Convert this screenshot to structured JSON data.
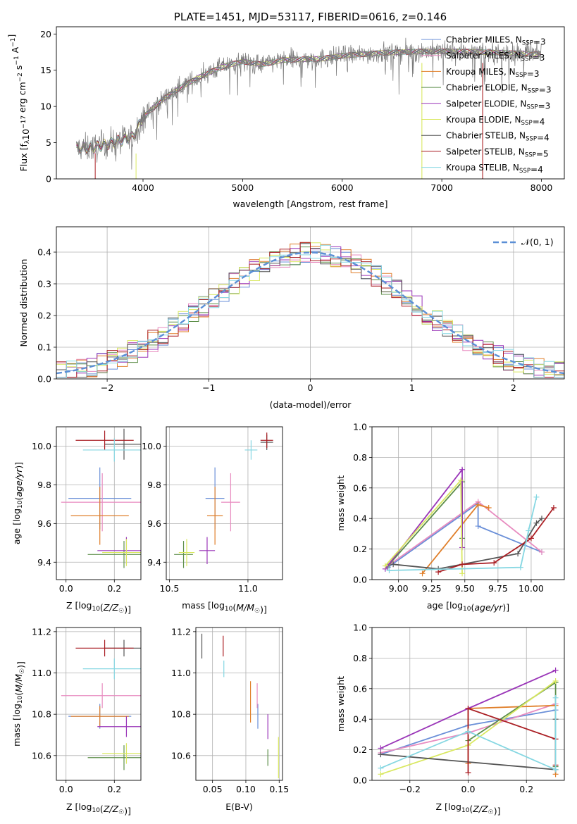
{
  "colors": {
    "Chabrier MILES": "#6a8fd8",
    "Salpeter MILES": "#e88cc0",
    "Kroupa MILES": "#e07f2a",
    "Chabrier ELODIE": "#5e8f4a",
    "Salpeter ELODIE": "#9a35b8",
    "Kroupa ELODIE": "#d9e860",
    "Chabrier STELIB": "#555555",
    "Salpeter STELIB": "#aa1f24",
    "Kroupa STELIB": "#86d7e2",
    "normal": "#5b8fd6"
  },
  "chart_data": [
    {
      "id": "spectrum",
      "type": "line",
      "title": "PLATE=1451, MJD=53117, FIBERID=0616, z=0.146",
      "xlabel": "wavelength [Angstrom, rest frame]",
      "ylabel": "Flux [f_λ10^-17 erg cm^-2 s^-1 A^-1]",
      "xlim": [
        3130,
        8230
      ],
      "ylim": [
        0,
        21
      ],
      "xticks": [
        4000,
        5000,
        6000,
        7000,
        8000
      ],
      "yticks": [
        0,
        5,
        10,
        15,
        20
      ],
      "legend_position": "upper-right",
      "legend": [
        {
          "model": "Chabrier MILES",
          "nssp": 3
        },
        {
          "model": "Salpeter MILES",
          "nssp": 3
        },
        {
          "model": "Kroupa MILES",
          "nssp": 3
        },
        {
          "model": "Chabrier ELODIE",
          "nssp": 3
        },
        {
          "model": "Salpeter ELODIE",
          "nssp": 3
        },
        {
          "model": "Kroupa ELODIE",
          "nssp": 4
        },
        {
          "model": "Chabrier STELIB",
          "nssp": 4
        },
        {
          "model": "Salpeter STELIB",
          "nssp": 5
        },
        {
          "model": "Kroupa STELIB",
          "nssp": 4
        }
      ],
      "continuum": {
        "wavelength": [
          3300,
          3500,
          3700,
          3900,
          4000,
          4200,
          4400,
          4600,
          4800,
          5000,
          5200,
          5400,
          5600,
          5800,
          6000,
          6200,
          6400,
          6600,
          6800,
          7000,
          7200,
          7400,
          7600,
          7800,
          8000
        ],
        "flux": [
          4.2,
          4.3,
          5.0,
          5.8,
          8.5,
          11.0,
          12.8,
          14.3,
          15.5,
          16.2,
          15.8,
          16.4,
          16.5,
          16.6,
          17.0,
          17.2,
          17.4,
          17.5,
          17.6,
          17.6,
          17.6,
          17.5,
          17.4,
          17.3,
          17.2
        ]
      },
      "stelib_cutoffs": [
        {
          "model": "Kroupa ELODIE",
          "wavelength": 6800
        },
        {
          "model": "Salpeter STELIB",
          "wavelength": 7410
        }
      ]
    },
    {
      "id": "residuals",
      "type": "histogram",
      "xlabel": "(data-model)/error",
      "ylabel": "Normed distribution",
      "xlim": [
        -2.5,
        2.5
      ],
      "ylim": [
        0,
        0.48
      ],
      "xticks": [
        -2,
        -1,
        0,
        1,
        2
      ],
      "yticks": [
        0.0,
        0.1,
        0.2,
        0.3,
        0.4
      ],
      "grid": true,
      "legend_position": "upper-right",
      "legend": [
        "𝒩(0, 1)"
      ],
      "bins": 50
    },
    {
      "id": "age_vs_Z",
      "type": "errorbar",
      "xlabel": "Z [log10(Z/Z☉)]",
      "ylabel": "age [log10(age/yr)]",
      "xlim": [
        -0.04,
        0.31
      ],
      "ylim": [
        9.31,
        10.1
      ],
      "xticks": [
        0.0,
        0.2
      ],
      "yticks": [
        9.4,
        9.6,
        9.8,
        10.0
      ],
      "grid": true,
      "points": [
        {
          "model": "Chabrier MILES",
          "x": 0.14,
          "xerr": 0.13,
          "y": 9.73,
          "yerr": 0.16
        },
        {
          "model": "Salpeter MILES",
          "x": 0.15,
          "xerr": 0.17,
          "y": 9.71,
          "yerr": 0.15
        },
        {
          "model": "Kroupa MILES",
          "x": 0.14,
          "xerr": 0.12,
          "y": 9.64,
          "yerr": 0.15
        },
        {
          "model": "Chabrier ELODIE",
          "x": 0.24,
          "xerr": 0.15,
          "y": 9.44,
          "yerr": 0.07
        },
        {
          "model": "Salpeter ELODIE",
          "x": 0.25,
          "xerr": 0.12,
          "y": 9.46,
          "yerr": 0.07
        },
        {
          "model": "Kroupa ELODIE",
          "x": 0.25,
          "xerr": 0.1,
          "y": 9.45,
          "yerr": 0.07
        },
        {
          "model": "Chabrier STELIB",
          "x": 0.24,
          "xerr": 0.08,
          "y": 10.01,
          "yerr": 0.08
        },
        {
          "model": "Salpeter STELIB",
          "x": 0.16,
          "xerr": 0.12,
          "y": 10.03,
          "yerr": 0.05
        },
        {
          "model": "Kroupa STELIB",
          "x": 0.2,
          "xerr": 0.13,
          "y": 9.98,
          "yerr": 0.06
        }
      ]
    },
    {
      "id": "age_vs_mass",
      "type": "errorbar",
      "xlabel": "mass [log10(M/M☉)]",
      "ylabel": "",
      "xlim": [
        10.48,
        11.22
      ],
      "ylim": [
        9.31,
        10.1
      ],
      "xticks": [
        10.5,
        11.0
      ],
      "yticks": [
        9.4,
        9.6,
        9.8,
        10.0
      ],
      "grid": true,
      "points": [
        {
          "model": "Chabrier MILES",
          "x": 10.79,
          "xerr": 0.06,
          "y": 9.73,
          "yerr": 0.16
        },
        {
          "model": "Salpeter MILES",
          "x": 10.89,
          "xerr": 0.06,
          "y": 9.71,
          "yerr": 0.15
        },
        {
          "model": "Kroupa MILES",
          "x": 10.79,
          "xerr": 0.05,
          "y": 9.64,
          "yerr": 0.15
        },
        {
          "model": "Chabrier ELODIE",
          "x": 10.59,
          "xerr": 0.06,
          "y": 9.44,
          "yerr": 0.07
        },
        {
          "model": "Salpeter ELODIE",
          "x": 10.74,
          "xerr": 0.05,
          "y": 9.46,
          "yerr": 0.07
        },
        {
          "model": "Kroupa ELODIE",
          "x": 10.61,
          "xerr": 0.05,
          "y": 9.45,
          "yerr": 0.07
        },
        {
          "model": "Chabrier STELIB",
          "x": 11.12,
          "xerr": 0.04,
          "y": 10.02,
          "yerr": 0.04
        },
        {
          "model": "Salpeter STELIB",
          "x": 11.12,
          "xerr": 0.04,
          "y": 10.03,
          "yerr": 0.04
        },
        {
          "model": "Kroupa STELIB",
          "x": 11.02,
          "xerr": 0.04,
          "y": 9.98,
          "yerr": 0.05
        }
      ]
    },
    {
      "id": "weight_vs_age",
      "type": "line",
      "xlabel": "age [log10(age/yr)]",
      "ylabel": "mass weight",
      "xlim": [
        8.8,
        10.25
      ],
      "ylim": [
        0,
        1
      ],
      "xticks": [
        9.0,
        9.25,
        9.5,
        9.75,
        10.0
      ],
      "yticks": [
        0.0,
        0.2,
        0.4,
        0.6,
        0.8,
        1.0
      ],
      "grid": true,
      "series": [
        {
          "model": "Chabrier MILES",
          "x": [
            8.92,
            9.6,
            9.6,
            10.08
          ],
          "y": [
            0.08,
            0.5,
            0.35,
            0.18
          ]
        },
        {
          "model": "Salpeter MILES",
          "x": [
            8.92,
            9.6,
            10.08
          ],
          "y": [
            0.09,
            0.51,
            0.18
          ]
        },
        {
          "model": "Kroupa MILES",
          "x": [
            9.18,
            9.6,
            9.68
          ],
          "y": [
            0.04,
            0.49,
            0.47
          ]
        },
        {
          "model": "Chabrier ELODIE",
          "x": [
            8.92,
            9.48,
            9.48
          ],
          "y": [
            0.09,
            0.64,
            0.27
          ]
        },
        {
          "model": "Salpeter ELODIE",
          "x": [
            8.9,
            9.48,
            9.48
          ],
          "y": [
            0.07,
            0.72,
            0.21
          ]
        },
        {
          "model": "Kroupa ELODIE",
          "x": [
            8.9,
            9.47,
            9.48
          ],
          "y": [
            0.09,
            0.65,
            0.04
          ]
        },
        {
          "model": "Chabrier STELIB",
          "x": [
            8.96,
            9.3,
            9.9,
            10.04,
            10.08
          ],
          "y": [
            0.1,
            0.07,
            0.17,
            0.37,
            0.4
          ]
        },
        {
          "model": "Salpeter STELIB",
          "x": [
            9.3,
            9.48,
            9.72,
            10.0,
            10.17
          ],
          "y": [
            0.05,
            0.1,
            0.11,
            0.27,
            0.47
          ]
        },
        {
          "model": "Kroupa STELIB",
          "x": [
            8.93,
            9.92,
            9.98,
            10.04
          ],
          "y": [
            0.06,
            0.08,
            0.32,
            0.54
          ]
        }
      ]
    },
    {
      "id": "mass_vs_Z",
      "type": "errorbar",
      "xlabel": "Z [log10(Z/Z☉)]",
      "ylabel": "mass [log10(M/M☉)]",
      "xlim": [
        -0.04,
        0.31
      ],
      "ylim": [
        10.48,
        11.22
      ],
      "xticks": [
        0.0,
        0.2
      ],
      "yticks": [
        10.6,
        10.8,
        11.0,
        11.2
      ],
      "grid": true,
      "points": [
        {
          "model": "Chabrier MILES",
          "x": 0.14,
          "xerr": 0.13,
          "y": 10.79,
          "yerr": 0.06
        },
        {
          "model": "Salpeter MILES",
          "x": 0.15,
          "xerr": 0.17,
          "y": 10.89,
          "yerr": 0.06
        },
        {
          "model": "Kroupa MILES",
          "x": 0.14,
          "xerr": 0.12,
          "y": 10.79,
          "yerr": 0.05
        },
        {
          "model": "Chabrier ELODIE",
          "x": 0.24,
          "xerr": 0.15,
          "y": 10.59,
          "yerr": 0.06
        },
        {
          "model": "Salpeter ELODIE",
          "x": 0.25,
          "xerr": 0.12,
          "y": 10.74,
          "yerr": 0.05
        },
        {
          "model": "Kroupa ELODIE",
          "x": 0.25,
          "xerr": 0.1,
          "y": 10.61,
          "yerr": 0.05
        },
        {
          "model": "Chabrier STELIB",
          "x": 0.24,
          "xerr": 0.08,
          "y": 11.12,
          "yerr": 0.04
        },
        {
          "model": "Salpeter STELIB",
          "x": 0.16,
          "xerr": 0.12,
          "y": 11.12,
          "yerr": 0.04
        },
        {
          "model": "Kroupa STELIB",
          "x": 0.2,
          "xerr": 0.13,
          "y": 11.02,
          "yerr": 0.05
        }
      ]
    },
    {
      "id": "mass_vs_ebv",
      "type": "errorbar",
      "xlabel": "E(B-V)",
      "ylabel": "",
      "xlim": [
        0.025,
        0.155
      ],
      "ylim": [
        10.48,
        11.22
      ],
      "xticks": [
        0.05,
        0.1,
        0.15
      ],
      "yticks": [
        10.6,
        10.8,
        11.0,
        11.2
      ],
      "grid": true,
      "points": [
        {
          "model": "Chabrier MILES",
          "x": 0.118,
          "y": 10.79,
          "yerr": 0.06
        },
        {
          "model": "Salpeter MILES",
          "x": 0.117,
          "y": 10.89,
          "yerr": 0.06
        },
        {
          "model": "Kroupa MILES",
          "x": 0.107,
          "y": 10.86,
          "yerr": 0.1
        },
        {
          "model": "Chabrier ELODIE",
          "x": 0.133,
          "y": 10.59,
          "yerr": 0.04
        },
        {
          "model": "Salpeter ELODIE",
          "x": 0.133,
          "y": 10.74,
          "yerr": 0.06
        },
        {
          "model": "Kroupa ELODIE",
          "x": 0.149,
          "y": 10.59,
          "yerr": 0.1
        },
        {
          "model": "Chabrier STELIB",
          "x": 0.034,
          "y": 11.13,
          "yerr": 0.06
        },
        {
          "model": "Salpeter STELIB",
          "x": 0.066,
          "y": 11.13,
          "yerr": 0.05
        },
        {
          "model": "Kroupa STELIB",
          "x": 0.067,
          "y": 11.02,
          "yerr": 0.04
        }
      ]
    },
    {
      "id": "weight_vs_Z",
      "type": "line",
      "xlabel": "Z [log10(Z/Z☉)]",
      "ylabel": "mass weight",
      "xlim": [
        -0.33,
        0.33
      ],
      "ylim": [
        0,
        1
      ],
      "xticks": [
        -0.2,
        0.0,
        0.2
      ],
      "yticks": [
        0.0,
        0.2,
        0.4,
        0.6,
        0.8,
        1.0
      ],
      "grid": true,
      "series": [
        {
          "model": "Chabrier MILES",
          "x": [
            -0.3,
            0.0,
            0.3
          ],
          "y": [
            0.17,
            0.36,
            0.46
          ]
        },
        {
          "model": "Salpeter MILES",
          "x": [
            -0.3,
            0.0,
            0.3
          ],
          "y": [
            0.18,
            0.31,
            0.5
          ]
        },
        {
          "model": "Kroupa MILES",
          "x": [
            0.0,
            0.0,
            0.3,
            0.3
          ],
          "y": [
            0.11,
            0.47,
            0.49,
            0.04
          ]
        },
        {
          "model": "Chabrier ELODIE",
          "x": [
            0.0,
            0.3,
            0.3
          ],
          "y": [
            0.26,
            0.64,
            0.09
          ]
        },
        {
          "model": "Salpeter ELODIE",
          "x": [
            -0.3,
            0.0,
            0.3
          ],
          "y": [
            0.21,
            0.47,
            0.72
          ]
        },
        {
          "model": "Kroupa ELODIE",
          "x": [
            -0.3,
            0.0,
            0.3
          ],
          "y": [
            0.04,
            0.23,
            0.65
          ]
        },
        {
          "model": "Chabrier STELIB",
          "x": [
            -0.3,
            0.3,
            0.3
          ],
          "y": [
            0.17,
            0.07,
            0.4
          ]
        },
        {
          "model": "Salpeter STELIB",
          "x": [
            0.0,
            0.0,
            0.3,
            0.3
          ],
          "y": [
            0.05,
            0.47,
            0.27,
            0.1
          ]
        },
        {
          "model": "Kroupa STELIB",
          "x": [
            -0.3,
            0.0,
            0.3,
            0.3
          ],
          "y": [
            0.08,
            0.32,
            0.07,
            0.54
          ]
        }
      ]
    }
  ]
}
